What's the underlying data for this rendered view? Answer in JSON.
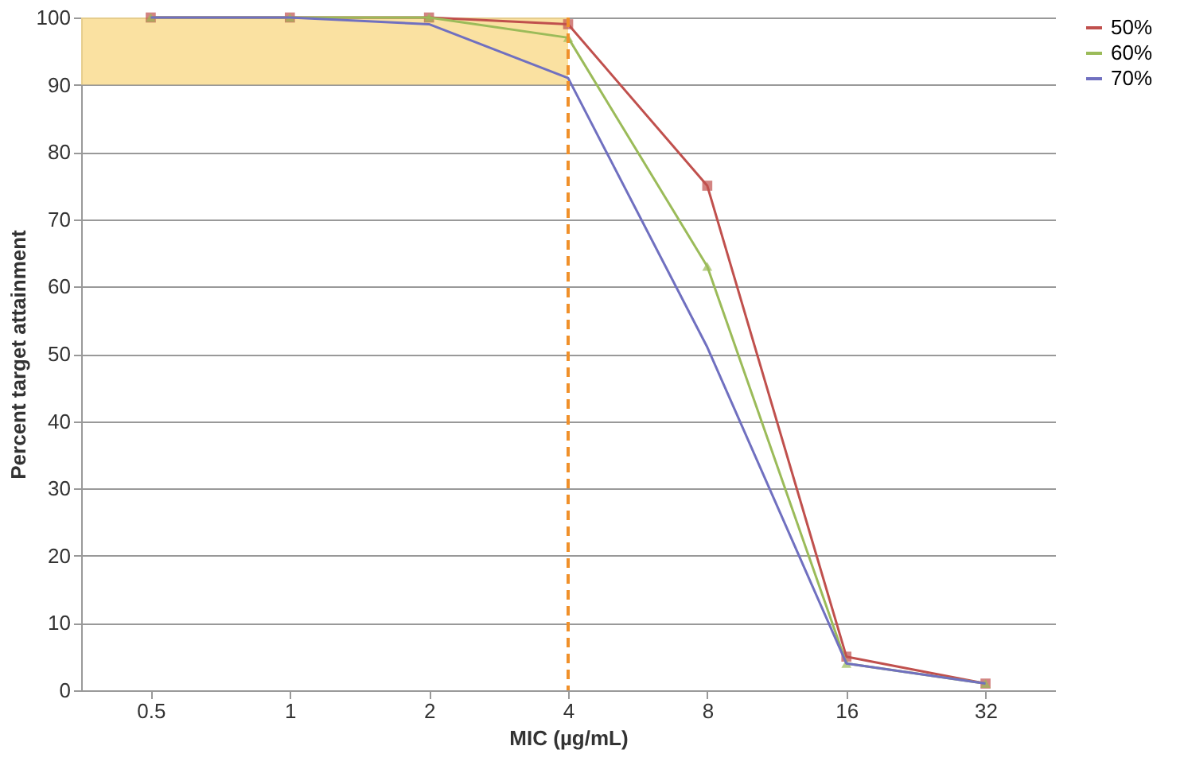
{
  "chart_data": {
    "type": "line",
    "xlabel": "MIC (µg/mL)",
    "ylabel": "Percent target attainment",
    "categories": [
      "0.5",
      "1",
      "2",
      "4",
      "8",
      "16",
      "32"
    ],
    "series": [
      {
        "name": "50%",
        "color": "#c0504d",
        "marker": "square",
        "values": [
          100,
          100,
          100,
          99,
          75,
          5,
          1
        ]
      },
      {
        "name": "60%",
        "color": "#9bbb59",
        "marker": "triangle",
        "values": [
          100,
          100,
          100,
          97,
          63,
          4,
          1
        ]
      },
      {
        "name": "70%",
        "color": "#7070c0",
        "marker": "none",
        "values": [
          100,
          100,
          99,
          91,
          51,
          4,
          1
        ]
      }
    ],
    "ylim": [
      0,
      100
    ],
    "yticks": [
      0,
      10,
      20,
      30,
      40,
      50,
      60,
      70,
      80,
      90,
      100
    ],
    "grid": "y",
    "legend": "right",
    "ref_lines": [
      {
        "axis": "x",
        "value": "4",
        "color": "#f0902a",
        "line_style": "dashed"
      }
    ],
    "bands": [
      {
        "axis": "y",
        "from": 90,
        "to": 100,
        "color": "#f9d98a"
      }
    ]
  }
}
